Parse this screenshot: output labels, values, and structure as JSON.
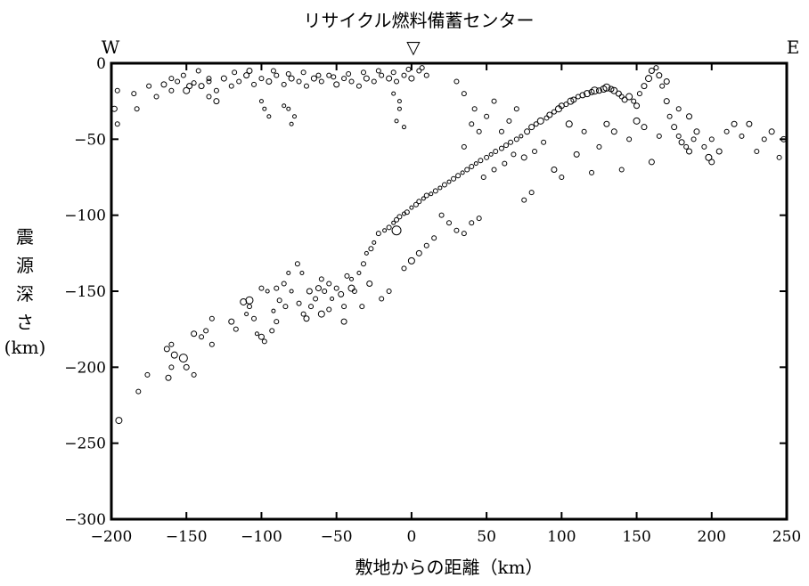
{
  "chart_data": {
    "type": "scatter",
    "title": "リサイクル燃料備蓄センター",
    "site_marker": "▽",
    "left_label": "W",
    "right_label": "E",
    "xlabel": "敷地からの距離（km）",
    "ylabel_chars": [
      "震",
      "源",
      "深",
      "さ",
      "(km)"
    ],
    "xlim": [
      -200,
      250
    ],
    "ylim": [
      -300,
      0
    ],
    "xticks": [
      -200,
      -150,
      -100,
      -50,
      0,
      50,
      100,
      150,
      200,
      250
    ],
    "yticks": [
      0,
      -50,
      -100,
      -150,
      -200,
      -250,
      -300
    ],
    "grid": false,
    "marker": "open circle, size proportional to magnitude",
    "points": [
      [
        -195,
        -235,
        7
      ],
      [
        -182,
        -216,
        5
      ],
      [
        -176,
        -205,
        5
      ],
      [
        -162,
        -207,
        6
      ],
      [
        -160,
        -200,
        5
      ],
      [
        -158,
        -192,
        7
      ],
      [
        -163,
        -188,
        6
      ],
      [
        -160,
        -185,
        5
      ],
      [
        -152,
        -194,
        9
      ],
      [
        -150,
        -200,
        6
      ],
      [
        -145,
        -205,
        5
      ],
      [
        -145,
        -178,
        6
      ],
      [
        -140,
        -180,
        5
      ],
      [
        -137,
        -176,
        5
      ],
      [
        -133,
        -185,
        5
      ],
      [
        -133,
        -168,
        5
      ],
      [
        -120,
        -170,
        6
      ],
      [
        -117,
        -175,
        5
      ],
      [
        -112,
        -157,
        7
      ],
      [
        -108,
        -160,
        5
      ],
      [
        -110,
        -165,
        4
      ],
      [
        -105,
        -168,
        5
      ],
      [
        -103,
        -178,
        4
      ],
      [
        -100,
        -180,
        6
      ],
      [
        -98,
        -183,
        5
      ],
      [
        -93,
        -176,
        5
      ],
      [
        -90,
        -170,
        5
      ],
      [
        -92,
        -163,
        4
      ],
      [
        -100,
        -148,
        5
      ],
      [
        -96,
        -150,
        4
      ],
      [
        -90,
        -148,
        5
      ],
      [
        -88,
        -156,
        5
      ],
      [
        -84,
        -160,
        5
      ],
      [
        -80,
        -150,
        4
      ],
      [
        -82,
        -138,
        4
      ],
      [
        -76,
        -132,
        5
      ],
      [
        -73,
        -138,
        4
      ],
      [
        -72,
        -165,
        5
      ],
      [
        -70,
        -168,
        6
      ],
      [
        -67,
        -160,
        5
      ],
      [
        -64,
        -155,
        5
      ],
      [
        -62,
        -148,
        6
      ],
      [
        -60,
        -142,
        5
      ],
      [
        -58,
        -150,
        5
      ],
      [
        -55,
        -145,
        5
      ],
      [
        -53,
        -155,
        4
      ],
      [
        -50,
        -148,
        5
      ],
      [
        -47,
        -152,
        6
      ],
      [
        -45,
        -160,
        5
      ],
      [
        -43,
        -140,
        5
      ],
      [
        -40,
        -142,
        4
      ],
      [
        -38,
        -150,
        5
      ],
      [
        -35,
        -138,
        4
      ],
      [
        -32,
        -132,
        5
      ],
      [
        -30,
        -125,
        4
      ],
      [
        -27,
        -122,
        5
      ],
      [
        -25,
        -118,
        4
      ],
      [
        -22,
        -112,
        5
      ],
      [
        -18,
        -110,
        4
      ],
      [
        -15,
        -108,
        5
      ],
      [
        -12,
        -105,
        4
      ],
      [
        -10,
        -103,
        5
      ],
      [
        -8,
        -101,
        5
      ],
      [
        -5,
        -99,
        4
      ],
      [
        -3,
        -98,
        5
      ],
      [
        0,
        -95,
        4
      ],
      [
        3,
        -93,
        5
      ],
      [
        5,
        -91,
        5
      ],
      [
        8,
        -89,
        4
      ],
      [
        10,
        -87,
        5
      ],
      [
        13,
        -86,
        4
      ],
      [
        16,
        -84,
        5
      ],
      [
        19,
        -82,
        4
      ],
      [
        22,
        -80,
        5
      ],
      [
        25,
        -78,
        4
      ],
      [
        28,
        -76,
        5
      ],
      [
        31,
        -74,
        5
      ],
      [
        34,
        -72,
        4
      ],
      [
        37,
        -70,
        5
      ],
      [
        40,
        -68,
        5
      ],
      [
        43,
        -66,
        4
      ],
      [
        46,
        -64,
        5
      ],
      [
        50,
        -62,
        5
      ],
      [
        53,
        -60,
        4
      ],
      [
        56,
        -58,
        5
      ],
      [
        60,
        -56,
        5
      ],
      [
        63,
        -54,
        5
      ],
      [
        66,
        -52,
        5
      ],
      [
        70,
        -50,
        5
      ],
      [
        73,
        -48,
        4
      ],
      [
        77,
        -45,
        6
      ],
      [
        80,
        -42,
        6
      ],
      [
        83,
        -40,
        5
      ],
      [
        86,
        -38,
        7
      ],
      [
        90,
        -36,
        5
      ],
      [
        92,
        -34,
        6
      ],
      [
        95,
        -32,
        5
      ],
      [
        98,
        -30,
        7
      ],
      [
        100,
        -28,
        6
      ],
      [
        103,
        -27,
        5
      ],
      [
        106,
        -25,
        7
      ],
      [
        108,
        -24,
        6
      ],
      [
        111,
        -22,
        5
      ],
      [
        114,
        -21,
        6
      ],
      [
        117,
        -20,
        7
      ],
      [
        120,
        -19,
        6
      ],
      [
        122,
        -18,
        8
      ],
      [
        125,
        -18,
        6
      ],
      [
        128,
        -17,
        7
      ],
      [
        130,
        -16,
        8
      ],
      [
        133,
        -17,
        6
      ],
      [
        135,
        -18,
        7
      ],
      [
        138,
        -20,
        6
      ],
      [
        140,
        -22,
        5
      ],
      [
        142,
        -24,
        6
      ],
      [
        145,
        -22,
        7
      ],
      [
        148,
        -25,
        5
      ],
      [
        150,
        -28,
        6
      ],
      [
        152,
        -20,
        5
      ],
      [
        155,
        -15,
        6
      ],
      [
        158,
        -10,
        7
      ],
      [
        160,
        -5,
        6
      ],
      [
        163,
        -3,
        5
      ],
      [
        165,
        -8,
        6
      ],
      [
        167,
        -15,
        5
      ],
      [
        170,
        -25,
        6
      ],
      [
        172,
        -35,
        5
      ],
      [
        175,
        -42,
        6
      ],
      [
        178,
        -48,
        5
      ],
      [
        180,
        -52,
        6
      ],
      [
        183,
        -55,
        5
      ],
      [
        185,
        -58,
        6
      ],
      [
        188,
        -50,
        5
      ],
      [
        190,
        -45,
        6
      ],
      [
        195,
        -55,
        5
      ],
      [
        198,
        -62,
        7
      ],
      [
        200,
        -50,
        5
      ],
      [
        205,
        -58,
        6
      ],
      [
        210,
        -45,
        5
      ],
      [
        220,
        -48,
        5
      ],
      [
        225,
        -40,
        6
      ],
      [
        230,
        -58,
        5
      ],
      [
        235,
        -50,
        5
      ],
      [
        240,
        -45,
        6
      ],
      [
        245,
        -62,
        5
      ],
      [
        248,
        -50,
        6
      ],
      [
        -148,
        -15,
        6
      ],
      [
        -156,
        -12,
        5
      ],
      [
        -150,
        -18,
        7
      ],
      [
        -145,
        -13,
        5
      ],
      [
        -140,
        -15,
        6
      ],
      [
        -135,
        -12,
        5
      ],
      [
        -130,
        -18,
        5
      ],
      [
        -125,
        -10,
        6
      ],
      [
        -120,
        -15,
        5
      ],
      [
        -115,
        -12,
        5
      ],
      [
        -110,
        -8,
        6
      ],
      [
        -105,
        -14,
        5
      ],
      [
        -100,
        -10,
        5
      ],
      [
        -95,
        -12,
        6
      ],
      [
        -90,
        -8,
        5
      ],
      [
        -85,
        -14,
        5
      ],
      [
        -80,
        -10,
        6
      ],
      [
        -75,
        -12,
        5
      ],
      [
        -70,
        -15,
        5
      ],
      [
        -65,
        -10,
        6
      ],
      [
        -60,
        -12,
        5
      ],
      [
        -55,
        -8,
        5
      ],
      [
        -50,
        -14,
        6
      ],
      [
        -45,
        -10,
        5
      ],
      [
        -40,
        -12,
        5
      ],
      [
        -35,
        -15,
        5
      ],
      [
        -30,
        -10,
        6
      ],
      [
        -25,
        -12,
        5
      ],
      [
        -20,
        -8,
        5
      ],
      [
        -15,
        -10,
        6
      ],
      [
        -10,
        -12,
        5
      ],
      [
        -5,
        -8,
        5
      ],
      [
        0,
        -10,
        6
      ],
      [
        5,
        -5,
        5
      ],
      [
        10,
        -8,
        5
      ],
      [
        -198,
        -30,
        6
      ],
      [
        -196,
        -18,
        5
      ],
      [
        -185,
        -20,
        5
      ],
      [
        -183,
        -30,
        5
      ],
      [
        -175,
        -15,
        5
      ],
      [
        -170,
        -22,
        5
      ],
      [
        -165,
        -14,
        6
      ],
      [
        -160,
        -18,
        5
      ],
      [
        -130,
        -25,
        6
      ],
      [
        -135,
        -22,
        5
      ],
      [
        30,
        -12,
        5
      ],
      [
        35,
        -20,
        5
      ],
      [
        42,
        -30,
        5
      ],
      [
        50,
        -35,
        5
      ],
      [
        55,
        -25,
        5
      ],
      [
        60,
        -45,
        5
      ],
      [
        65,
        -38,
        5
      ],
      [
        70,
        -30,
        5
      ],
      [
        35,
        -55,
        5
      ],
      [
        40,
        -40,
        5
      ],
      [
        45,
        -45,
        5
      ],
      [
        20,
        -100,
        5
      ],
      [
        25,
        -105,
        5
      ],
      [
        30,
        -110,
        5
      ],
      [
        35,
        -112,
        5
      ],
      [
        40,
        -105,
        5
      ],
      [
        45,
        -102,
        5
      ],
      [
        15,
        -115,
        5
      ],
      [
        10,
        -120,
        5
      ],
      [
        5,
        -125,
        6
      ],
      [
        0,
        -130,
        7
      ],
      [
        -5,
        -135,
        5
      ],
      [
        -15,
        -150,
        5
      ],
      [
        -20,
        -155,
        5
      ],
      [
        -28,
        -145,
        6
      ],
      [
        -33,
        -160,
        5
      ],
      [
        -45,
        -170,
        6
      ],
      [
        -55,
        -162,
        5
      ],
      [
        -68,
        -150,
        6
      ],
      [
        -75,
        -158,
        5
      ],
      [
        -85,
        -145,
        5
      ],
      [
        -10,
        -110,
        10
      ],
      [
        -60,
        -165,
        7
      ],
      [
        -108,
        -156,
        8
      ],
      [
        -40,
        -148,
        7
      ],
      [
        95,
        -70,
        6
      ],
      [
        100,
        -75,
        5
      ],
      [
        120,
        -72,
        5
      ],
      [
        140,
        -70,
        5
      ],
      [
        160,
        -65,
        6
      ],
      [
        200,
        -65,
        6
      ],
      [
        215,
        -40,
        6
      ],
      [
        -196,
        -40,
        5
      ],
      [
        75,
        -90,
        5
      ],
      [
        80,
        -85,
        5
      ],
      [
        110,
        -60,
        6
      ],
      [
        125,
        -55,
        5
      ],
      [
        135,
        -45,
        6
      ],
      [
        145,
        -50,
        5
      ],
      [
        155,
        -42,
        6
      ],
      [
        165,
        -48,
        5
      ],
      [
        185,
        -35,
        6
      ],
      [
        178,
        -30,
        5
      ],
      [
        170,
        -12,
        6
      ],
      [
        150,
        -38,
        7
      ],
      [
        130,
        -40,
        6
      ],
      [
        115,
        -45,
        5
      ],
      [
        105,
        -40,
        7
      ],
      [
        88,
        -52,
        5
      ],
      [
        82,
        -58,
        5
      ],
      [
        75,
        -62,
        6
      ],
      [
        68,
        -60,
        5
      ],
      [
        62,
        -66,
        5
      ],
      [
        55,
        -70,
        5
      ],
      [
        48,
        -75,
        5
      ],
      [
        -80,
        -40,
        4
      ],
      [
        -78,
        -35,
        4
      ],
      [
        -82,
        -30,
        4
      ],
      [
        -85,
        -28,
        4
      ],
      [
        -8,
        -30,
        4
      ],
      [
        -10,
        -38,
        4
      ],
      [
        -5,
        -42,
        4
      ],
      [
        -8,
        -25,
        4
      ],
      [
        -12,
        -20,
        4
      ],
      [
        -98,
        -30,
        4
      ],
      [
        -95,
        -35,
        4
      ],
      [
        -100,
        -25,
        4
      ],
      [
        -160,
        -10,
        5
      ],
      [
        -152,
        -8,
        5
      ],
      [
        -142,
        -5,
        5
      ],
      [
        -135,
        -10,
        5
      ],
      [
        -118,
        -6,
        5
      ],
      [
        -108,
        -5,
        6
      ],
      [
        -92,
        -5,
        5
      ],
      [
        -82,
        -7,
        5
      ],
      [
        -72,
        -6,
        5
      ],
      [
        -62,
        -8,
        5
      ],
      [
        -52,
        -9,
        5
      ],
      [
        -42,
        -7,
        5
      ],
      [
        -32,
        -6,
        5
      ],
      [
        -22,
        -5,
        5
      ],
      [
        -12,
        -6,
        5
      ],
      [
        -2,
        -4,
        5
      ],
      [
        7,
        -3,
        5
      ]
    ]
  }
}
